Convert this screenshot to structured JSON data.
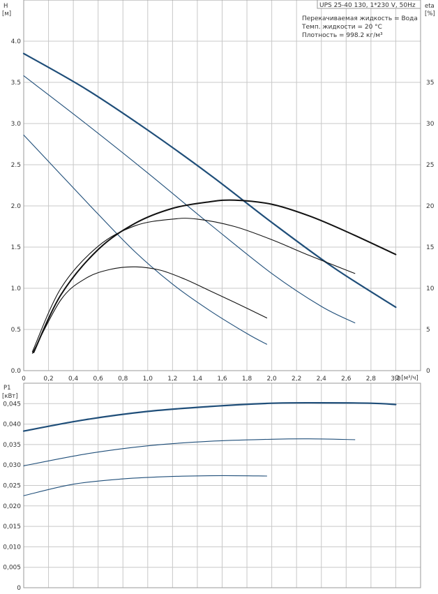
{
  "info": {
    "pump_label": "UPS 25-40 130, 1*230 V, 50Hz",
    "lines": [
      "Перекачиваемая жидкость = Вода",
      "Темп. жидкости = 20 °C",
      "Плотность = 998.2 кг/м³"
    ]
  },
  "watermark": "",
  "chart_data": [
    {
      "type": "line",
      "panel": "head_efficiency",
      "ylabel_symbol": "H",
      "ylabel_unit": "[м]",
      "y2label_symbol": "eta",
      "y2label_unit": "[%]",
      "xlabel": "Q [м³/ч]",
      "xlim": [
        0,
        3.2
      ],
      "ylim": [
        0,
        4.5
      ],
      "y2lim": [
        0,
        45
      ],
      "xticks": [
        "0",
        "0,2",
        "0,4",
        "0,6",
        "0,8",
        "1,0",
        "1,2",
        "1,4",
        "1,6",
        "1,8",
        "2,0",
        "2,2",
        "2,4",
        "2,6",
        "2,8",
        "3,0"
      ],
      "yticks": [
        "0.0",
        "0.5",
        "1.0",
        "1.5",
        "2.0",
        "2.5",
        "3.0",
        "3.5",
        "4.0"
      ],
      "y2ticks": [
        "0",
        "5",
        "10",
        "15",
        "20",
        "25",
        "30",
        "35"
      ],
      "grid": true,
      "series": [
        {
          "role": "head",
          "axis": "left",
          "color": "#1f4e79",
          "width": 2.2,
          "x": [
            0,
            0.5,
            1.0,
            1.5,
            2.0,
            2.5,
            3.0
          ],
          "y": [
            3.85,
            3.42,
            2.92,
            2.38,
            1.8,
            1.25,
            0.77
          ]
        },
        {
          "role": "head",
          "axis": "left",
          "color": "#1f4e79",
          "width": 1.1,
          "x": [
            0,
            0.5,
            1.0,
            1.5,
            2.0,
            2.4,
            2.67
          ],
          "y": [
            3.58,
            3.0,
            2.4,
            1.78,
            1.18,
            0.78,
            0.58
          ]
        },
        {
          "role": "head",
          "axis": "left",
          "color": "#1f4e79",
          "width": 1.1,
          "x": [
            0,
            0.3,
            0.6,
            0.9,
            1.2,
            1.5,
            1.8,
            1.96
          ],
          "y": [
            2.86,
            2.38,
            1.9,
            1.44,
            1.05,
            0.73,
            0.45,
            0.32
          ]
        },
        {
          "role": "efficiency",
          "axis": "right",
          "color": "#111111",
          "width": 2.0,
          "x": [
            0.08,
            0.3,
            0.6,
            0.9,
            1.2,
            1.5,
            1.7,
            2.0,
            2.3,
            2.6,
            3.0
          ],
          "y": [
            2.2,
            9.2,
            14.7,
            17.9,
            19.7,
            20.5,
            20.7,
            20.2,
            18.8,
            16.9,
            14.1
          ]
        },
        {
          "role": "efficiency",
          "axis": "right",
          "color": "#111111",
          "width": 1.1,
          "x": [
            0.07,
            0.3,
            0.6,
            0.9,
            1.2,
            1.4,
            1.7,
            2.0,
            2.3,
            2.67
          ],
          "y": [
            2.3,
            10.0,
            15.1,
            17.6,
            18.4,
            18.4,
            17.5,
            15.9,
            14.0,
            11.8
          ]
        },
        {
          "role": "efficiency",
          "axis": "right",
          "color": "#111111",
          "width": 1.1,
          "x": [
            0.07,
            0.3,
            0.5,
            0.7,
            0.9,
            1.1,
            1.3,
            1.5,
            1.7,
            1.96
          ],
          "y": [
            2.1,
            8.6,
            11.2,
            12.3,
            12.6,
            12.2,
            11.1,
            9.7,
            8.3,
            6.4
          ]
        }
      ]
    },
    {
      "type": "line",
      "panel": "power",
      "ylabel_symbol": "P1",
      "ylabel_unit": "[кВт]",
      "xlim": [
        0,
        3.2
      ],
      "ylim": [
        0,
        0.05
      ],
      "yticks": [
        "0",
        "0,005",
        "0,010",
        "0,015",
        "0,020",
        "0,025",
        "0,030",
        "0,035",
        "0,040",
        "0,045"
      ],
      "grid": true,
      "series": [
        {
          "role": "power",
          "color": "#1f4e79",
          "width": 2.2,
          "x": [
            0,
            0.5,
            1.0,
            1.5,
            2.0,
            2.4,
            2.8,
            3.0
          ],
          "y": [
            0.0383,
            0.0411,
            0.0431,
            0.0443,
            0.0451,
            0.0452,
            0.0451,
            0.0448
          ]
        },
        {
          "role": "power",
          "color": "#1f4e79",
          "width": 1.1,
          "x": [
            0,
            0.5,
            1.0,
            1.5,
            2.0,
            2.3,
            2.67
          ],
          "y": [
            0.0298,
            0.0327,
            0.0347,
            0.0358,
            0.0363,
            0.0364,
            0.0362
          ]
        },
        {
          "role": "power",
          "color": "#1f4e79",
          "width": 1.1,
          "x": [
            0,
            0.4,
            0.8,
            1.2,
            1.6,
            1.96
          ],
          "y": [
            0.0225,
            0.0253,
            0.0266,
            0.0272,
            0.0274,
            0.0273
          ]
        }
      ]
    }
  ]
}
